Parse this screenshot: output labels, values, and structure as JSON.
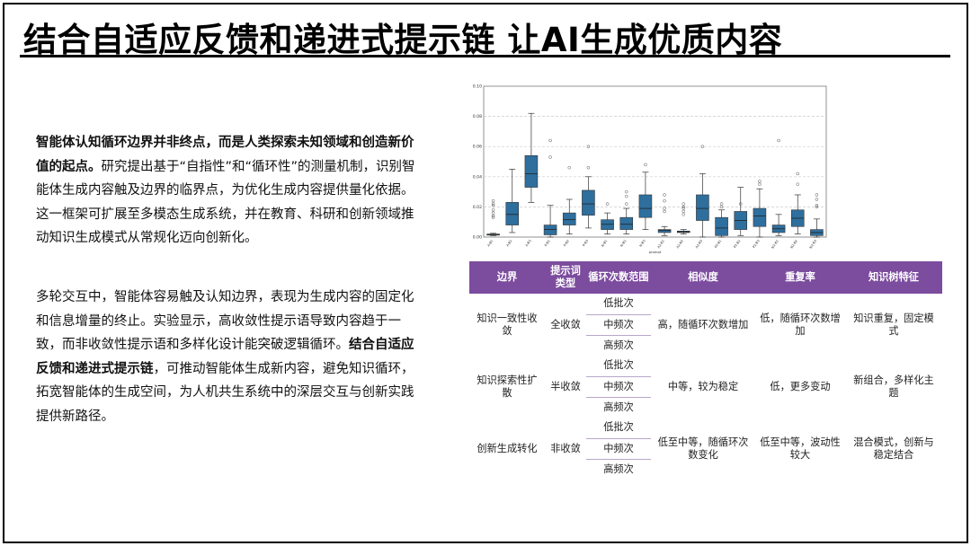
{
  "slide": {
    "title": "结合自适应反馈和递进式提示链 让AI生成优质内容",
    "paragraph1": {
      "bold": "智能体认知循环边界并非终点，而是人类探索未知领域和创造新价值的起点。",
      "text": "研究提出基于“自指性”和“循环性”的测量机制，识别智能体生成内容触及边界的临界点，为优化生成内容提供量化依据。这一框架可扩展至多模态生成系统，并在教育、科研和创新领域推动知识生成模式从常规化迈向创新化。"
    },
    "paragraph2": {
      "text": "多轮交互中，智能体容易触及认知边界，表现为生成内容的固定化和信息增量的终止。实验显示，高收敛性提示语导致内容趋于一致，而非收敛性提示语和多样化设计能突破逻辑循环。",
      "bold": "结合自适应反馈和递进式提示链",
      "text2": "，可推动智能体生成新内容，避免知识循环，拓宽智能体的生成空间，为人机共生系统中的深层交互与创新实践提供新路径。"
    }
  },
  "chart_data": {
    "type": "boxplot",
    "color": "#2e6f9e",
    "ylim": [
      0,
      0.1
    ],
    "yticks": [
      "0.00",
      "0.02",
      "0.04",
      "0.06",
      "0.08",
      "0.10"
    ],
    "xlabel": "prompt",
    "grid": "horizontal dashed",
    "categories": [
      "A-B1",
      "A-B2",
      "A-B3",
      "P-B1",
      "P-B2",
      "P-B3",
      "N-B1",
      "N-B2",
      "N-B3",
      "A2-B1",
      "A2-B2",
      "A2-B3",
      "P2-B1",
      "P2-B2",
      "P2-B3",
      "N2-B1",
      "N2-B2",
      "N2-B3"
    ],
    "boxes": [
      {
        "whislo": 0.001,
        "q1": 0.0015,
        "med": 0.0018,
        "q3": 0.002,
        "whishi": 0.0025,
        "fliers": [
          0.013,
          0.014,
          0.016,
          0.018,
          0.021,
          0.022,
          0.024
        ]
      },
      {
        "whislo": 0.003,
        "q1": 0.008,
        "med": 0.015,
        "q3": 0.023,
        "whishi": 0.045,
        "fliers": []
      },
      {
        "whislo": 0.023,
        "q1": 0.033,
        "med": 0.042,
        "q3": 0.054,
        "whishi": 0.082,
        "fliers": []
      },
      {
        "whislo": 0.0,
        "q1": 0.0015,
        "med": 0.005,
        "q3": 0.008,
        "whishi": 0.021,
        "fliers": [
          0.064,
          0.053
        ]
      },
      {
        "whislo": 0.002,
        "q1": 0.008,
        "med": 0.0115,
        "q3": 0.016,
        "whishi": 0.025,
        "fliers": [
          0.046
        ]
      },
      {
        "whislo": 0.006,
        "q1": 0.0145,
        "med": 0.022,
        "q3": 0.031,
        "whishi": 0.04,
        "fliers": [
          0.046,
          0.06
        ]
      },
      {
        "whislo": 0.002,
        "q1": 0.005,
        "med": 0.0085,
        "q3": 0.0115,
        "whishi": 0.016,
        "fliers": [
          0.022
        ]
      },
      {
        "whislo": 0.002,
        "q1": 0.005,
        "med": 0.0085,
        "q3": 0.013,
        "whishi": 0.019,
        "fliers": [
          0.022,
          0.03,
          0.027
        ]
      },
      {
        "whislo": 0.005,
        "q1": 0.013,
        "med": 0.019,
        "q3": 0.028,
        "whishi": 0.043,
        "fliers": [
          0.048
        ]
      },
      {
        "whislo": 0.001,
        "q1": 0.003,
        "med": 0.0045,
        "q3": 0.005,
        "whishi": 0.007,
        "fliers": [
          0.024,
          0.028,
          0.019,
          0.017
        ]
      },
      {
        "whislo": 0.002,
        "q1": 0.003,
        "med": 0.0035,
        "q3": 0.004,
        "whishi": 0.005,
        "fliers": [
          0.015,
          0.017,
          0.019,
          0.02,
          0.022
        ]
      },
      {
        "whislo": 0.0,
        "q1": 0.011,
        "med": 0.019,
        "q3": 0.028,
        "whishi": 0.042,
        "fliers": [
          0.06
        ]
      },
      {
        "whislo": 0.0,
        "q1": 0.001,
        "med": 0.006,
        "q3": 0.013,
        "whishi": 0.018,
        "fliers": [
          0.022,
          0.02
        ]
      },
      {
        "whislo": 0.001,
        "q1": 0.005,
        "med": 0.011,
        "q3": 0.017,
        "whishi": 0.033,
        "fliers": [
          0.022
        ]
      },
      {
        "whislo": 0.0,
        "q1": 0.007,
        "med": 0.014,
        "q3": 0.019,
        "whishi": 0.032,
        "fliers": [
          0.037,
          0.035
        ]
      },
      {
        "whislo": 0.001,
        "q1": 0.003,
        "med": 0.0055,
        "q3": 0.008,
        "whishi": 0.015,
        "fliers": [
          0.064
        ]
      },
      {
        "whislo": 0.002,
        "q1": 0.007,
        "med": 0.0125,
        "q3": 0.018,
        "whishi": 0.028,
        "fliers": [
          0.035,
          0.042
        ]
      },
      {
        "whislo": 0.0,
        "q1": 0.001,
        "med": 0.003,
        "q3": 0.005,
        "whishi": 0.012,
        "fliers": [
          0.025,
          0.028,
          0.02,
          0.021
        ]
      }
    ]
  },
  "table": {
    "header_color": "#7c4c9e",
    "headers": [
      "边界",
      "提示词类型",
      "循环次数范围",
      "相似度",
      "重复率",
      "知识树特征"
    ],
    "rows": [
      {
        "boundary": "知识一致性收敛",
        "type": "全收敛",
        "ranges": [
          "低批次",
          "中频次",
          "高频次"
        ],
        "similarity": "高，随循环次数增加",
        "repeat": "低，随循环次数增加",
        "feature": "知识重复，固定模式"
      },
      {
        "boundary": "知识探索性扩散",
        "type": "半收敛",
        "ranges": [
          "低批次",
          "中频次",
          "高频次"
        ],
        "similarity": "中等，较为稳定",
        "repeat": "低，更多变动",
        "feature": "新组合，多样化主题"
      },
      {
        "boundary": "创新生成转化",
        "type": "非收敛",
        "ranges": [
          "低批次",
          "中频次",
          "高频次"
        ],
        "similarity": "低至中等，随循环次数变化",
        "repeat": "低至中等，波动性较大",
        "feature": "混合模式，创新与稳定结合"
      }
    ]
  }
}
